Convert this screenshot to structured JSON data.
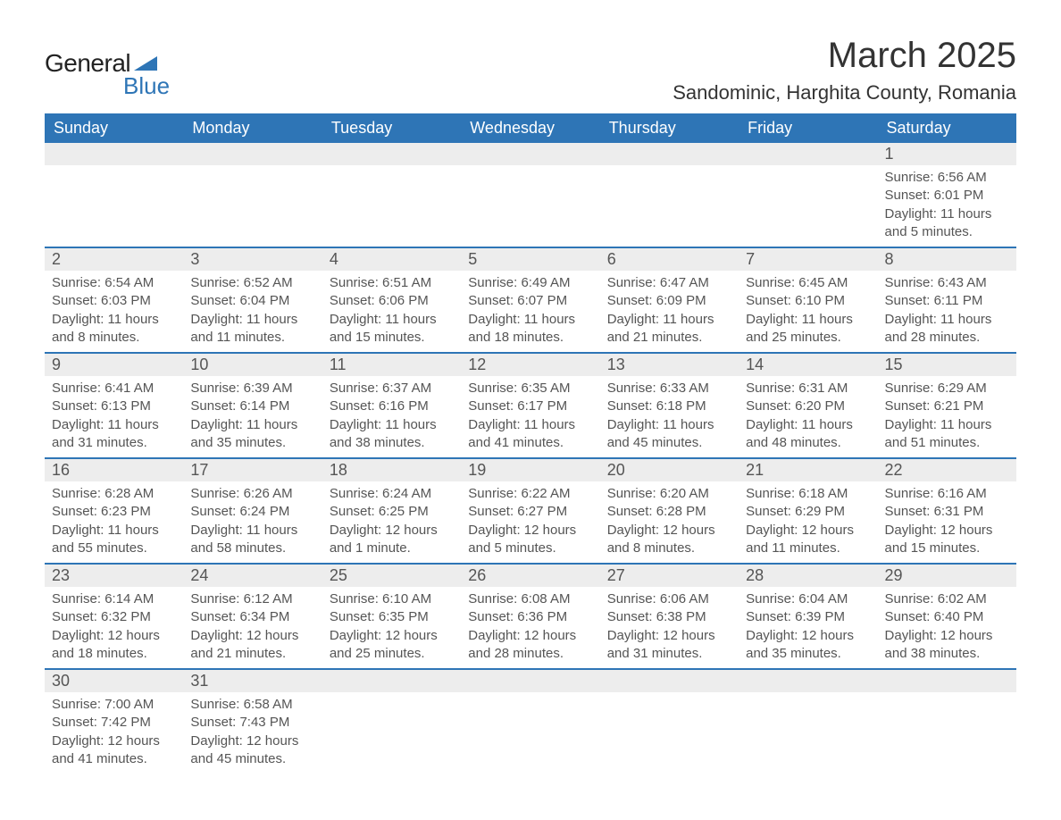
{
  "logo": {
    "text1": "General",
    "text2": "Blue",
    "icon_color": "#2e75b6"
  },
  "title": "March 2025",
  "location": "Sandominic, Harghita County, Romania",
  "colors": {
    "header_bg": "#2e75b6",
    "header_text": "#ffffff",
    "daynum_bg": "#ededed",
    "border": "#2e75b6",
    "body_text": "#555555"
  },
  "weekdays": [
    "Sunday",
    "Monday",
    "Tuesday",
    "Wednesday",
    "Thursday",
    "Friday",
    "Saturday"
  ],
  "weeks": [
    [
      null,
      null,
      null,
      null,
      null,
      null,
      {
        "n": "1",
        "sr": "Sunrise: 6:56 AM",
        "ss": "Sunset: 6:01 PM",
        "d1": "Daylight: 11 hours",
        "d2": "and 5 minutes."
      }
    ],
    [
      {
        "n": "2",
        "sr": "Sunrise: 6:54 AM",
        "ss": "Sunset: 6:03 PM",
        "d1": "Daylight: 11 hours",
        "d2": "and 8 minutes."
      },
      {
        "n": "3",
        "sr": "Sunrise: 6:52 AM",
        "ss": "Sunset: 6:04 PM",
        "d1": "Daylight: 11 hours",
        "d2": "and 11 minutes."
      },
      {
        "n": "4",
        "sr": "Sunrise: 6:51 AM",
        "ss": "Sunset: 6:06 PM",
        "d1": "Daylight: 11 hours",
        "d2": "and 15 minutes."
      },
      {
        "n": "5",
        "sr": "Sunrise: 6:49 AM",
        "ss": "Sunset: 6:07 PM",
        "d1": "Daylight: 11 hours",
        "d2": "and 18 minutes."
      },
      {
        "n": "6",
        "sr": "Sunrise: 6:47 AM",
        "ss": "Sunset: 6:09 PM",
        "d1": "Daylight: 11 hours",
        "d2": "and 21 minutes."
      },
      {
        "n": "7",
        "sr": "Sunrise: 6:45 AM",
        "ss": "Sunset: 6:10 PM",
        "d1": "Daylight: 11 hours",
        "d2": "and 25 minutes."
      },
      {
        "n": "8",
        "sr": "Sunrise: 6:43 AM",
        "ss": "Sunset: 6:11 PM",
        "d1": "Daylight: 11 hours",
        "d2": "and 28 minutes."
      }
    ],
    [
      {
        "n": "9",
        "sr": "Sunrise: 6:41 AM",
        "ss": "Sunset: 6:13 PM",
        "d1": "Daylight: 11 hours",
        "d2": "and 31 minutes."
      },
      {
        "n": "10",
        "sr": "Sunrise: 6:39 AM",
        "ss": "Sunset: 6:14 PM",
        "d1": "Daylight: 11 hours",
        "d2": "and 35 minutes."
      },
      {
        "n": "11",
        "sr": "Sunrise: 6:37 AM",
        "ss": "Sunset: 6:16 PM",
        "d1": "Daylight: 11 hours",
        "d2": "and 38 minutes."
      },
      {
        "n": "12",
        "sr": "Sunrise: 6:35 AM",
        "ss": "Sunset: 6:17 PM",
        "d1": "Daylight: 11 hours",
        "d2": "and 41 minutes."
      },
      {
        "n": "13",
        "sr": "Sunrise: 6:33 AM",
        "ss": "Sunset: 6:18 PM",
        "d1": "Daylight: 11 hours",
        "d2": "and 45 minutes."
      },
      {
        "n": "14",
        "sr": "Sunrise: 6:31 AM",
        "ss": "Sunset: 6:20 PM",
        "d1": "Daylight: 11 hours",
        "d2": "and 48 minutes."
      },
      {
        "n": "15",
        "sr": "Sunrise: 6:29 AM",
        "ss": "Sunset: 6:21 PM",
        "d1": "Daylight: 11 hours",
        "d2": "and 51 minutes."
      }
    ],
    [
      {
        "n": "16",
        "sr": "Sunrise: 6:28 AM",
        "ss": "Sunset: 6:23 PM",
        "d1": "Daylight: 11 hours",
        "d2": "and 55 minutes."
      },
      {
        "n": "17",
        "sr": "Sunrise: 6:26 AM",
        "ss": "Sunset: 6:24 PM",
        "d1": "Daylight: 11 hours",
        "d2": "and 58 minutes."
      },
      {
        "n": "18",
        "sr": "Sunrise: 6:24 AM",
        "ss": "Sunset: 6:25 PM",
        "d1": "Daylight: 12 hours",
        "d2": "and 1 minute."
      },
      {
        "n": "19",
        "sr": "Sunrise: 6:22 AM",
        "ss": "Sunset: 6:27 PM",
        "d1": "Daylight: 12 hours",
        "d2": "and 5 minutes."
      },
      {
        "n": "20",
        "sr": "Sunrise: 6:20 AM",
        "ss": "Sunset: 6:28 PM",
        "d1": "Daylight: 12 hours",
        "d2": "and 8 minutes."
      },
      {
        "n": "21",
        "sr": "Sunrise: 6:18 AM",
        "ss": "Sunset: 6:29 PM",
        "d1": "Daylight: 12 hours",
        "d2": "and 11 minutes."
      },
      {
        "n": "22",
        "sr": "Sunrise: 6:16 AM",
        "ss": "Sunset: 6:31 PM",
        "d1": "Daylight: 12 hours",
        "d2": "and 15 minutes."
      }
    ],
    [
      {
        "n": "23",
        "sr": "Sunrise: 6:14 AM",
        "ss": "Sunset: 6:32 PM",
        "d1": "Daylight: 12 hours",
        "d2": "and 18 minutes."
      },
      {
        "n": "24",
        "sr": "Sunrise: 6:12 AM",
        "ss": "Sunset: 6:34 PM",
        "d1": "Daylight: 12 hours",
        "d2": "and 21 minutes."
      },
      {
        "n": "25",
        "sr": "Sunrise: 6:10 AM",
        "ss": "Sunset: 6:35 PM",
        "d1": "Daylight: 12 hours",
        "d2": "and 25 minutes."
      },
      {
        "n": "26",
        "sr": "Sunrise: 6:08 AM",
        "ss": "Sunset: 6:36 PM",
        "d1": "Daylight: 12 hours",
        "d2": "and 28 minutes."
      },
      {
        "n": "27",
        "sr": "Sunrise: 6:06 AM",
        "ss": "Sunset: 6:38 PM",
        "d1": "Daylight: 12 hours",
        "d2": "and 31 minutes."
      },
      {
        "n": "28",
        "sr": "Sunrise: 6:04 AM",
        "ss": "Sunset: 6:39 PM",
        "d1": "Daylight: 12 hours",
        "d2": "and 35 minutes."
      },
      {
        "n": "29",
        "sr": "Sunrise: 6:02 AM",
        "ss": "Sunset: 6:40 PM",
        "d1": "Daylight: 12 hours",
        "d2": "and 38 minutes."
      }
    ],
    [
      {
        "n": "30",
        "sr": "Sunrise: 7:00 AM",
        "ss": "Sunset: 7:42 PM",
        "d1": "Daylight: 12 hours",
        "d2": "and 41 minutes."
      },
      {
        "n": "31",
        "sr": "Sunrise: 6:58 AM",
        "ss": "Sunset: 7:43 PM",
        "d1": "Daylight: 12 hours",
        "d2": "and 45 minutes."
      },
      null,
      null,
      null,
      null,
      null
    ]
  ]
}
